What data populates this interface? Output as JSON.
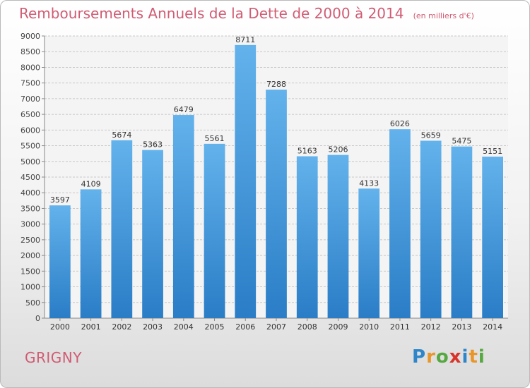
{
  "header": {
    "title": "Remboursements Annuels de la Dette de 2000 à 2014",
    "unit": "(en milliers d'€)"
  },
  "footer": {
    "city": "GRIGNY",
    "brand": "Proxiti"
  },
  "logo_letters": [
    {
      "ch": "P",
      "color": "#2e86c9"
    },
    {
      "ch": "r",
      "color": "#e8962a"
    },
    {
      "ch": "o",
      "color": "#56a840"
    },
    {
      "ch": "x",
      "color": "#d9342b"
    },
    {
      "ch": "i",
      "color": "#2e86c9"
    },
    {
      "ch": "t",
      "color": "#e8962a"
    },
    {
      "ch": "i",
      "color": "#56a840"
    }
  ],
  "colors": {
    "bar_top": "#63b2ec",
    "bar_bottom": "#2a7dc6",
    "title": "#d05c73",
    "grid": "#c8c8c8"
  },
  "chart_data": {
    "type": "bar",
    "title": "Remboursements Annuels de la Dette de 2000 à 2014",
    "ylabel": "",
    "xlabel": "",
    "ylim": [
      0,
      9000
    ],
    "ytick_step": 500,
    "grid": true,
    "categories": [
      "2000",
      "2001",
      "2002",
      "2003",
      "2004",
      "2005",
      "2006",
      "2007",
      "2008",
      "2009",
      "2010",
      "2011",
      "2012",
      "2013",
      "2014"
    ],
    "values": [
      3597,
      4109,
      5674,
      5363,
      6479,
      5561,
      8711,
      7288,
      5163,
      5206,
      4133,
      6026,
      5659,
      5475,
      5151
    ]
  }
}
